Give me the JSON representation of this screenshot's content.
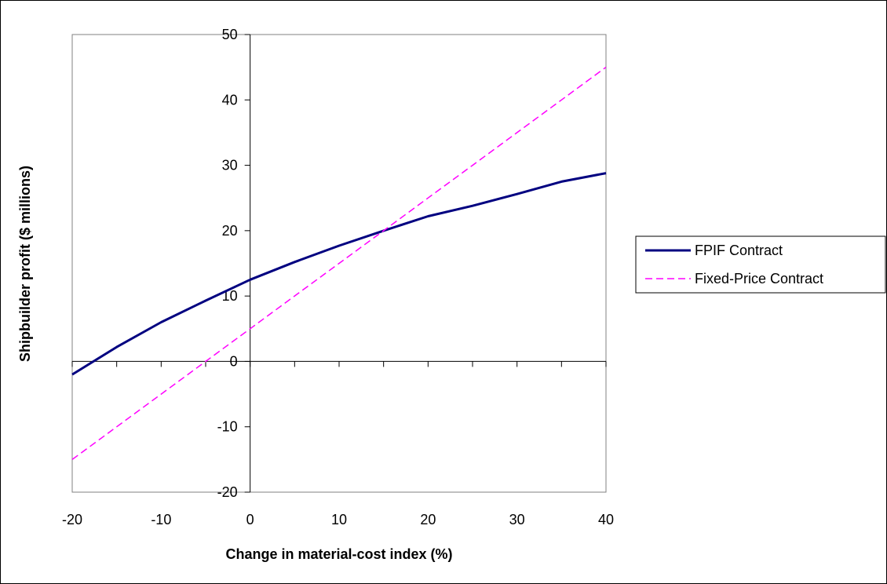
{
  "chart_data": {
    "type": "line",
    "xlabel": "Change in material-cost index (%)",
    "ylabel": "Shipbuilder profit ($ millions)",
    "xlim": [
      -20,
      40
    ],
    "ylim": [
      -20,
      50
    ],
    "x_ticks": [
      -20,
      -10,
      0,
      10,
      20,
      30,
      40
    ],
    "y_ticks": [
      -20,
      -10,
      0,
      10,
      20,
      30,
      40,
      50
    ],
    "x_tick_step": 5,
    "grid": false,
    "legend_position": "right",
    "series": [
      {
        "name": "FPIF Contract",
        "color": "#000080",
        "style": "solid",
        "x": [
          -20,
          -15,
          -10,
          -5,
          0,
          5,
          10,
          15,
          20,
          25,
          30,
          35,
          40
        ],
        "y": [
          -2,
          2.2,
          6,
          9.3,
          12.5,
          15.2,
          17.7,
          20,
          22.2,
          23.8,
          25.6,
          27.5,
          28.8
        ]
      },
      {
        "name": "Fixed-Price Contract",
        "color": "#FF00FF",
        "style": "dashed",
        "x": [
          -20,
          -15,
          -10,
          -5,
          0,
          5,
          10,
          15,
          20,
          25,
          30,
          35,
          40
        ],
        "y": [
          -15,
          -10,
          -5,
          0,
          5,
          10,
          15,
          20,
          25,
          30,
          35,
          40,
          45
        ]
      }
    ]
  }
}
